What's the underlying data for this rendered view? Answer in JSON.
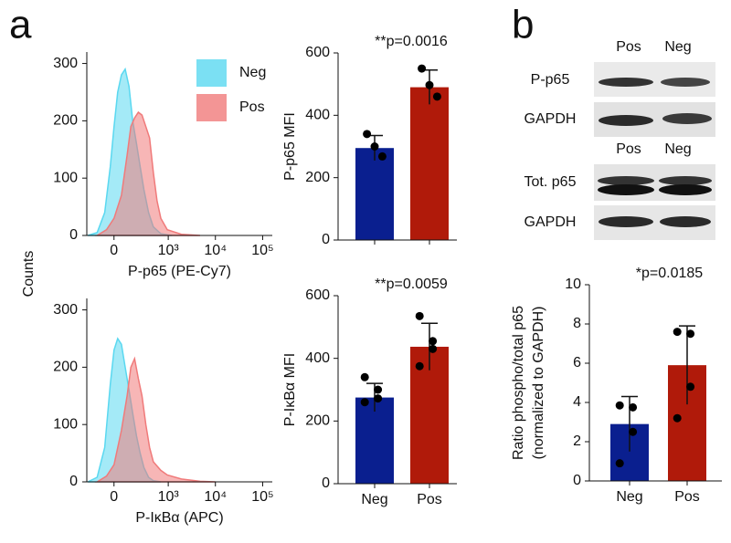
{
  "panels": {
    "a": "a",
    "b": "b"
  },
  "blots": {
    "lanes_top": [
      "Pos",
      "Neg"
    ],
    "lanes_bottom": [
      "Pos",
      "Neg"
    ],
    "rows": [
      "P-p65",
      "GAPDH",
      "Tot. p65",
      "GAPDH"
    ]
  },
  "chart_data": [
    {
      "type": "area",
      "xscale": "biexponential",
      "ylabel": "Counts",
      "xlabel": "P-p65 (PE-Cy7)",
      "xlim": [
        -250,
        160000
      ],
      "ylim": [
        0,
        320
      ],
      "yticks": [
        0,
        100,
        200,
        300
      ],
      "xticks": [
        {
          "value": 0,
          "label": "0"
        },
        {
          "value": 1000,
          "label": "10³"
        },
        {
          "value": 10000,
          "label": "10⁴"
        },
        {
          "value": 100000,
          "label": "10⁵"
        }
      ],
      "legend": "upper right",
      "series": [
        {
          "name": "Neg",
          "color": "#5ad8f0",
          "x": [
            -236,
            -131,
            -67,
            -26,
            0,
            26,
            53,
            82,
            114,
            149,
            190,
            236,
            290,
            373,
            476,
            692,
            1204
          ],
          "values": [
            0,
            5,
            40,
            120,
            190,
            250,
            280,
            290,
            260,
            200,
            160,
            120,
            80,
            40,
            15,
            3,
            0
          ]
        },
        {
          "name": "Pos",
          "color": "#f07a7a",
          "x": [
            -131,
            -53,
            0,
            53,
            98,
            131,
            169,
            212,
            262,
            322,
            392,
            476,
            575,
            692,
            957,
            1902,
            4748
          ],
          "values": [
            0,
            10,
            30,
            70,
            140,
            190,
            205,
            215,
            210,
            190,
            170,
            110,
            60,
            30,
            10,
            2,
            0
          ]
        }
      ]
    },
    {
      "type": "area",
      "xscale": "biexponential",
      "xlabel": "P-IκBα (APC)",
      "xlim": [
        -250,
        160000
      ],
      "ylim": [
        0,
        320
      ],
      "yticks": [
        0,
        100,
        200,
        300
      ],
      "xticks": [
        {
          "value": 0,
          "label": "0"
        },
        {
          "value": 1000,
          "label": "10³"
        },
        {
          "value": 10000,
          "label": "10⁴"
        },
        {
          "value": 100000,
          "label": "10⁵"
        }
      ],
      "series": [
        {
          "color": "#5ad8f0",
          "x": [
            -236,
            -131,
            -67,
            -26,
            0,
            26,
            53,
            82,
            114,
            149,
            190,
            236,
            290,
            373,
            476,
            692
          ],
          "values": [
            0,
            8,
            60,
            170,
            230,
            250,
            240,
            200,
            160,
            120,
            80,
            50,
            25,
            8,
            2,
            0
          ]
        },
        {
          "color": "#f07a7a",
          "x": [
            -131,
            -53,
            0,
            53,
            98,
            131,
            169,
            212,
            262,
            322,
            392,
            476,
            692,
            957,
            1902,
            4748,
            10000
          ],
          "values": [
            0,
            10,
            30,
            90,
            150,
            200,
            215,
            180,
            150,
            100,
            60,
            35,
            20,
            12,
            5,
            1,
            0
          ]
        }
      ]
    },
    {
      "type": "bar",
      "title": "**p=0.0016",
      "ylabel": "P-p65 MFI",
      "categories": [
        null,
        null
      ],
      "values": [
        295,
        490
      ],
      "errors": [
        40,
        55
      ],
      "points": [
        [
          340,
          300,
          268
        ],
        [
          550,
          497,
          460
        ]
      ],
      "colors": [
        "#0a1f8f",
        "#b01a0a"
      ],
      "ylim": [
        0,
        600
      ],
      "yticks": [
        0,
        200,
        400,
        600
      ]
    },
    {
      "type": "bar",
      "title": "**p=0.0059",
      "ylabel": "P-IκBα MFI",
      "categories": [
        "Neg",
        "Pos"
      ],
      "values": [
        275,
        437
      ],
      "errors": [
        45,
        75
      ],
      "points": [
        [
          340,
          300,
          272,
          260
        ],
        [
          535,
          455,
          430,
          375
        ]
      ],
      "colors": [
        "#0a1f8f",
        "#b01a0a"
      ],
      "ylim": [
        0,
        600
      ],
      "yticks": [
        0,
        200,
        400,
        600
      ]
    },
    {
      "type": "bar",
      "title": "*p=0.0185",
      "ylabel": [
        "Ratio phospho/total p65",
        "(normalized to GAPDH)"
      ],
      "categories": [
        "Neg",
        "Pos"
      ],
      "values": [
        2.9,
        5.9
      ],
      "errors": [
        1.4,
        2.0
      ],
      "points": [
        [
          3.85,
          3.75,
          2.5,
          0.9
        ],
        [
          7.6,
          7.5,
          4.8,
          3.2
        ]
      ],
      "colors": [
        "#0a1f8f",
        "#b01a0a"
      ],
      "ylim": [
        0,
        10
      ],
      "yticks": [
        0,
        2,
        4,
        6,
        8,
        10
      ]
    }
  ]
}
